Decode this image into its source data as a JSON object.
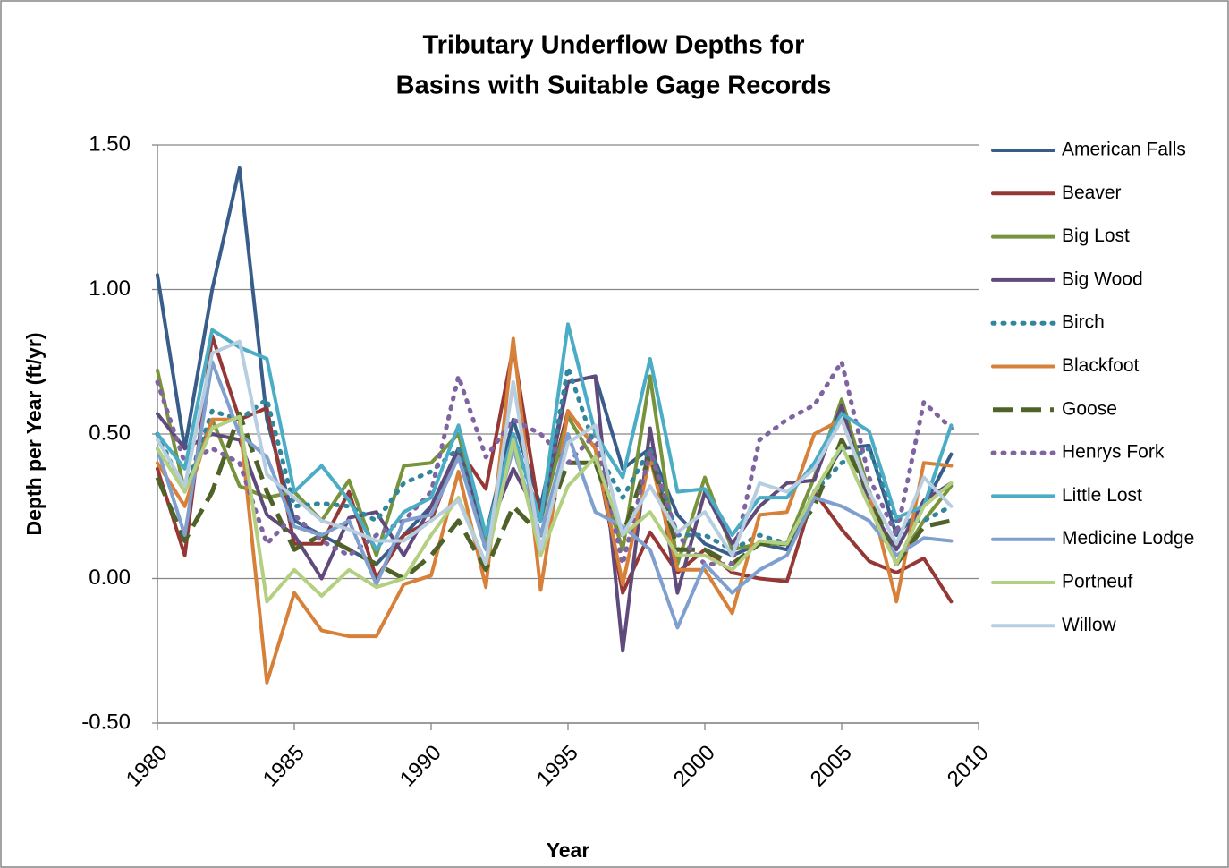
{
  "chart_data": {
    "type": "line",
    "title": [
      "Tributary Underflow Depths for",
      "Basins with Suitable Gage Records"
    ],
    "x_label": "Year",
    "y_label": "Depth per Year (ft/yr)",
    "x": [
      1980,
      1981,
      1982,
      1983,
      1984,
      1985,
      1986,
      1987,
      1988,
      1989,
      1990,
      1991,
      1992,
      1993,
      1994,
      1995,
      1996,
      1997,
      1998,
      1999,
      2000,
      2001,
      2002,
      2003,
      2004,
      2005,
      2006,
      2007,
      2008,
      2009
    ],
    "xlim": [
      1980,
      2010
    ],
    "xticks": [
      1980,
      1985,
      1990,
      1995,
      2000,
      2005,
      2010
    ],
    "ylim": [
      -0.5,
      1.5
    ],
    "yticks": [
      {
        "value": -0.5,
        "label": "-0.50"
      },
      {
        "value": 0,
        "label": "0.00"
      },
      {
        "value": 0.5,
        "label": "0.50"
      },
      {
        "value": 1,
        "label": "1.00"
      },
      {
        "value": 1.5,
        "label": "1.50"
      }
    ],
    "grid": true,
    "legend": "right",
    "series": [
      {
        "name": "American Falls",
        "color": "#385d8a",
        "style": "solid",
        "values": [
          1.05,
          0.45,
          1.0,
          1.42,
          0.55,
          0.2,
          0.15,
          0.1,
          0.05,
          0.15,
          0.25,
          0.45,
          0.15,
          0.55,
          0.25,
          0.68,
          0.7,
          0.38,
          0.45,
          0.22,
          0.12,
          0.08,
          0.12,
          0.1,
          0.3,
          0.45,
          0.46,
          0.15,
          0.25,
          0.43
        ]
      },
      {
        "name": "Beaver",
        "color": "#953735",
        "style": "solid",
        "values": [
          0.38,
          0.08,
          0.84,
          0.55,
          0.59,
          0.12,
          0.12,
          0.3,
          0.0,
          0.15,
          0.2,
          0.45,
          0.31,
          0.8,
          0.2,
          0.58,
          0.45,
          -0.05,
          0.16,
          0.02,
          0.1,
          0.02,
          0.0,
          -0.01,
          0.3,
          0.17,
          0.06,
          0.02,
          0.07,
          -0.08
        ]
      },
      {
        "name": "Big Lost",
        "color": "#77933c",
        "style": "solid",
        "values": [
          0.72,
          0.3,
          0.55,
          0.32,
          0.28,
          0.3,
          0.2,
          0.34,
          0.08,
          0.39,
          0.4,
          0.5,
          0.12,
          0.5,
          0.2,
          0.56,
          0.4,
          0.1,
          0.7,
          0.05,
          0.35,
          0.1,
          0.12,
          0.12,
          0.35,
          0.62,
          0.3,
          0.05,
          0.2,
          0.32
        ]
      },
      {
        "name": "Big Wood",
        "color": "#604a7b",
        "style": "solid",
        "values": [
          0.57,
          0.45,
          0.5,
          0.48,
          0.22,
          0.15,
          0.0,
          0.21,
          0.23,
          0.08,
          0.25,
          0.45,
          0.15,
          0.38,
          0.2,
          0.68,
          0.7,
          -0.25,
          0.52,
          -0.05,
          0.3,
          0.12,
          0.25,
          0.33,
          0.34,
          0.6,
          0.25,
          0.1,
          0.27,
          0.33
        ]
      },
      {
        "name": "Birch",
        "color": "#31859c",
        "style": "dot",
        "values": [
          0.5,
          0.3,
          0.58,
          0.55,
          0.62,
          0.25,
          0.26,
          0.25,
          0.2,
          0.33,
          0.37,
          0.45,
          0.1,
          0.5,
          0.2,
          0.73,
          0.45,
          0.28,
          0.45,
          0.15,
          0.15,
          0.1,
          0.15,
          0.12,
          0.3,
          0.4,
          0.45,
          0.2,
          0.2,
          0.25
        ]
      },
      {
        "name": "Blackfoot",
        "color": "#d7803a",
        "style": "solid",
        "values": [
          0.4,
          0.25,
          0.55,
          0.55,
          -0.36,
          -0.05,
          -0.18,
          -0.2,
          -0.2,
          -0.02,
          0.01,
          0.37,
          -0.03,
          0.83,
          -0.04,
          0.58,
          0.45,
          -0.02,
          0.42,
          0.03,
          0.03,
          -0.12,
          0.22,
          0.23,
          0.5,
          0.55,
          0.3,
          -0.08,
          0.4,
          0.39
        ]
      },
      {
        "name": "Goose",
        "color": "#4f6228",
        "style": "dash",
        "values": [
          0.35,
          0.13,
          0.3,
          0.57,
          0.3,
          0.1,
          0.15,
          0.1,
          0.05,
          0.0,
          0.08,
          0.2,
          0.03,
          0.25,
          0.15,
          0.4,
          0.4,
          0.15,
          0.43,
          0.1,
          0.1,
          0.05,
          0.12,
          0.12,
          0.25,
          0.48,
          0.3,
          0.05,
          0.18,
          0.2
        ]
      },
      {
        "name": "Henrys Fork",
        "color": "#8064a2",
        "style": "dot",
        "values": [
          0.68,
          0.4,
          0.45,
          0.4,
          0.12,
          0.22,
          0.13,
          0.08,
          0.15,
          0.2,
          0.3,
          0.7,
          0.42,
          0.55,
          0.5,
          0.4,
          0.5,
          0.05,
          0.44,
          0.15,
          0.05,
          0.05,
          0.48,
          0.55,
          0.6,
          0.75,
          0.35,
          0.15,
          0.61,
          0.52
        ]
      },
      {
        "name": "Little Lost",
        "color": "#4bacc6",
        "style": "solid",
        "values": [
          0.5,
          0.38,
          0.86,
          0.8,
          0.76,
          0.3,
          0.39,
          0.27,
          0.1,
          0.23,
          0.28,
          0.53,
          0.15,
          0.5,
          0.2,
          0.88,
          0.5,
          0.35,
          0.76,
          0.3,
          0.31,
          0.15,
          0.28,
          0.28,
          0.4,
          0.57,
          0.51,
          0.21,
          0.25,
          0.53
        ]
      },
      {
        "name": "Medicine Lodge",
        "color": "#7f9fcf",
        "style": "solid",
        "values": [
          0.45,
          0.15,
          0.75,
          0.5,
          0.42,
          0.18,
          0.15,
          0.2,
          -0.02,
          0.2,
          0.22,
          0.42,
          0.1,
          0.45,
          0.15,
          0.5,
          0.23,
          0.18,
          0.1,
          -0.17,
          0.05,
          -0.05,
          0.03,
          0.08,
          0.28,
          0.25,
          0.2,
          0.08,
          0.14,
          0.13
        ]
      },
      {
        "name": "Portneuf",
        "color": "#b3cf80",
        "style": "solid",
        "values": [
          0.45,
          0.3,
          0.52,
          0.56,
          -0.08,
          0.03,
          -0.06,
          0.03,
          -0.03,
          0.0,
          0.15,
          0.28,
          0.05,
          0.48,
          0.08,
          0.32,
          0.42,
          0.15,
          0.23,
          0.08,
          0.08,
          0.03,
          0.13,
          0.12,
          0.3,
          0.46,
          0.25,
          0.05,
          0.25,
          0.33
        ]
      },
      {
        "name": "Willow",
        "color": "#b7cde0",
        "style": "solid",
        "values": [
          0.48,
          0.32,
          0.78,
          0.82,
          0.36,
          0.28,
          0.2,
          0.17,
          0.13,
          0.13,
          0.2,
          0.27,
          0.05,
          0.68,
          0.1,
          0.47,
          0.53,
          0.15,
          0.32,
          0.16,
          0.23,
          0.08,
          0.33,
          0.3,
          0.38,
          0.55,
          0.3,
          0.12,
          0.35,
          0.25
        ]
      }
    ]
  }
}
